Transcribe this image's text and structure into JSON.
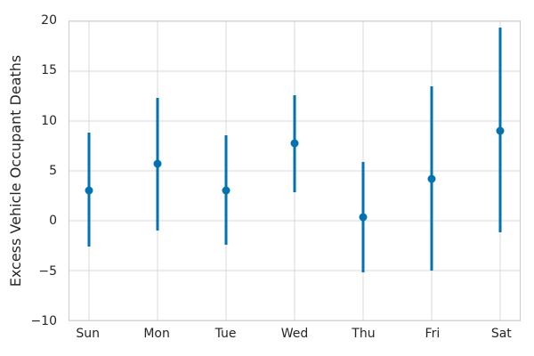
{
  "chart_data": {
    "type": "scatter",
    "subtype": "errorbar",
    "ylabel": "Excess Vehicle Occupant Deaths",
    "xlabel": "",
    "categories": [
      "Sun",
      "Mon",
      "Tue",
      "Wed",
      "Thu",
      "Fri",
      "Sat"
    ],
    "series": [
      {
        "name": "excess-vehicle-occupant-deaths",
        "values": [
          3.0,
          5.7,
          3.0,
          7.8,
          0.4,
          4.2,
          9.0
        ],
        "upper": [
          8.8,
          12.3,
          8.6,
          12.6,
          5.9,
          13.5,
          19.4
        ],
        "lower": [
          -2.6,
          -1.0,
          -2.4,
          2.9,
          -5.2,
          -5.0,
          -1.2
        ]
      }
    ],
    "ylim": [
      -10,
      20
    ],
    "yticks": [
      -10,
      -5,
      0,
      5,
      10,
      15,
      20
    ],
    "grid": true,
    "legend": false,
    "marker": "circle",
    "colors": {
      "point": "#0173b2",
      "grid": "#d9d9d9",
      "spine": "#cccccc",
      "text": "#262626",
      "background": "#ffffff"
    }
  }
}
